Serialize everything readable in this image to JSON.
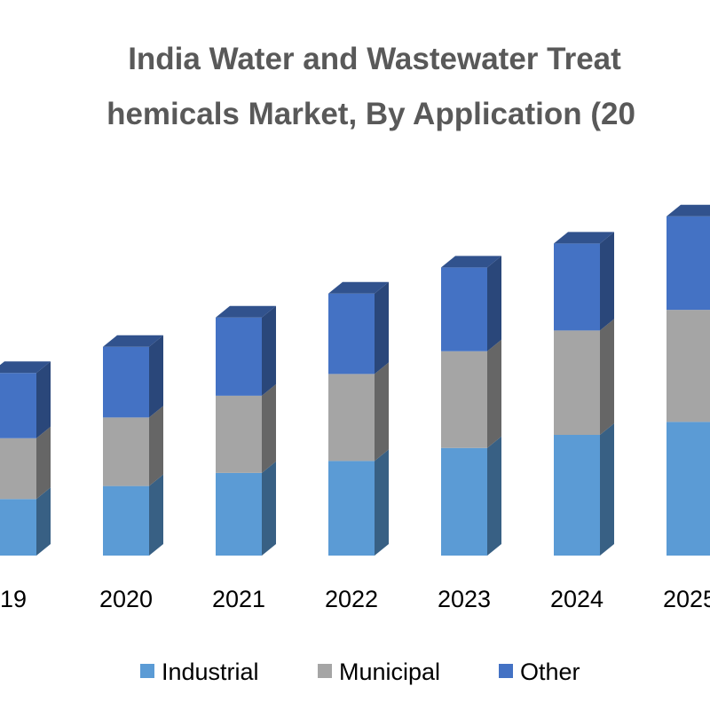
{
  "chart_data": {
    "type": "bar",
    "stacked": true,
    "style": "3d-column",
    "title_lines": [
      "India Water and Wastewater Treat",
      "hemicals Market, By Application (20"
    ],
    "categories": [
      "19",
      "2020",
      "2021",
      "2022",
      "2023",
      "2024",
      "2025"
    ],
    "series": [
      {
        "name": "Industrial",
        "color": "#5B9BD5",
        "values": [
          52,
          64,
          76,
          87,
          99,
          111,
          123
        ]
      },
      {
        "name": "Municipal",
        "color": "#A5A5A5",
        "values": [
          56,
          63,
          71,
          80,
          89,
          96,
          103
        ]
      },
      {
        "name": "Other",
        "color": "#4472C4",
        "values": [
          60,
          65,
          72,
          74,
          77,
          80,
          86
        ]
      }
    ],
    "ylim": [
      0,
      400
    ],
    "xlabel": "",
    "ylabel": "",
    "grid": false,
    "legend_position": "bottom-center"
  }
}
